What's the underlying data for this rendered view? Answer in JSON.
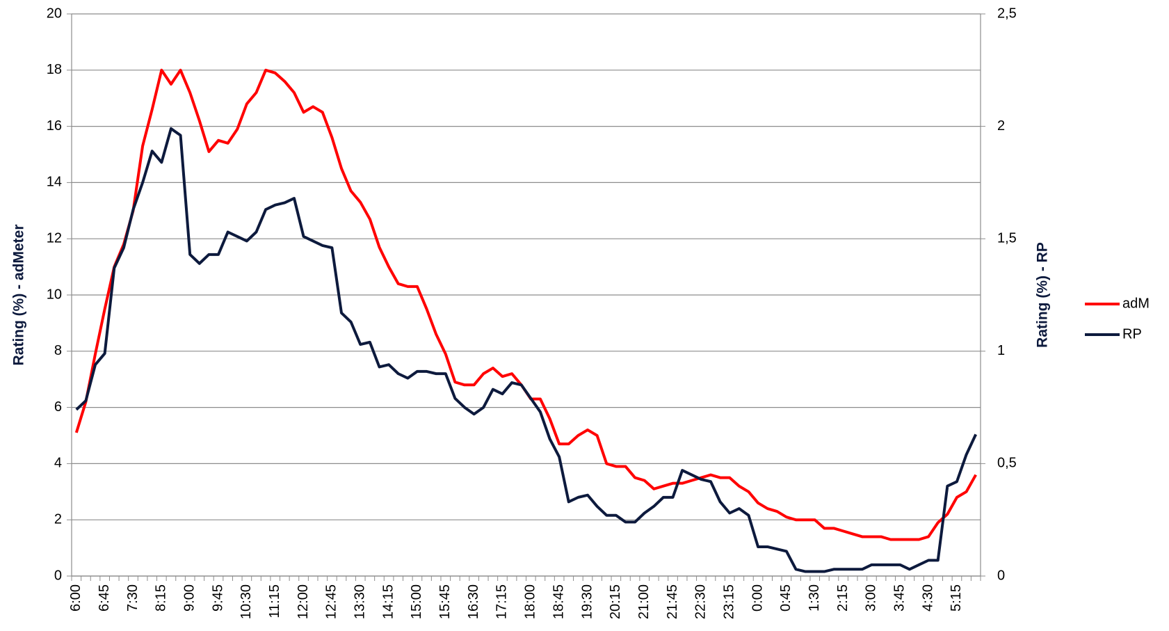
{
  "chart_data": {
    "type": "line",
    "y_label": "Rating (%) - adMeter",
    "y2_label": "Rating (%) - RP",
    "categories": [
      "6:00",
      null,
      null,
      "6:45",
      null,
      null,
      "7:30",
      null,
      null,
      "8:15",
      null,
      null,
      "9:00",
      null,
      null,
      "9:45",
      null,
      null,
      "10:30",
      null,
      null,
      "11:15",
      null,
      null,
      "12:00",
      null,
      null,
      "12:45",
      null,
      null,
      "13:30",
      null,
      null,
      "14:15",
      null,
      null,
      "15:00",
      null,
      null,
      "15:45",
      null,
      null,
      "16:30",
      null,
      null,
      "17:15",
      null,
      null,
      "18:00",
      null,
      null,
      "18:45",
      null,
      null,
      "19:30",
      null,
      null,
      "20:15",
      null,
      null,
      "21:00",
      null,
      null,
      "21:45",
      null,
      null,
      "22:30",
      null,
      null,
      "23:15",
      null,
      null,
      "0:00",
      null,
      null,
      "0:45",
      null,
      null,
      "1:30",
      null,
      null,
      "2:15",
      null,
      null,
      "3:00",
      null,
      null,
      "3:45",
      null,
      null,
      "4:30",
      null,
      null,
      "5:15",
      null,
      null
    ],
    "series": [
      {
        "name": "adM",
        "color": "#ff0000",
        "values": [
          5.1,
          6.2,
          7.9,
          9.5,
          11.0,
          11.8,
          13.0,
          15.3,
          16.6,
          18.0,
          17.5,
          18.0,
          17.2,
          16.2,
          15.1,
          15.5,
          15.4,
          15.9,
          16.8,
          17.2,
          18.0,
          17.9,
          17.6,
          17.2,
          16.5,
          16.7,
          16.5,
          15.6,
          14.5,
          13.7,
          13.3,
          12.7,
          11.7,
          11.0,
          10.4,
          10.3,
          10.3,
          9.5,
          8.6,
          7.9,
          6.9,
          6.8,
          6.8,
          7.2,
          7.4,
          7.1,
          7.2,
          6.8,
          6.3,
          6.3,
          5.6,
          4.7,
          4.7,
          5.0,
          5.2,
          5.0,
          4.0,
          3.9,
          3.9,
          3.5,
          3.4,
          3.1,
          3.2,
          3.3,
          3.3,
          3.4,
          3.5,
          3.6,
          3.5,
          3.5,
          3.2,
          3.0,
          2.6,
          2.4,
          2.3,
          2.1,
          2.0,
          2.0,
          2.0,
          1.7,
          1.7,
          1.6,
          1.5,
          1.4,
          1.4,
          1.4,
          1.3,
          1.3,
          1.3,
          1.3,
          1.4,
          1.9,
          2.2,
          2.8,
          3.0,
          3.6
        ]
      },
      {
        "name": "RP",
        "color": "#0d1a3d",
        "axis": "y2",
        "values": [
          0.74,
          0.78,
          0.94,
          0.99,
          1.37,
          1.46,
          1.63,
          1.75,
          1.89,
          1.84,
          1.99,
          1.96,
          1.43,
          1.39,
          1.43,
          1.43,
          1.53,
          1.51,
          1.49,
          1.53,
          1.63,
          1.65,
          1.66,
          1.68,
          1.51,
          1.49,
          1.47,
          1.46,
          1.17,
          1.13,
          1.03,
          1.04,
          0.93,
          0.94,
          0.9,
          0.88,
          0.91,
          0.91,
          0.9,
          0.9,
          0.79,
          0.75,
          0.72,
          0.75,
          0.83,
          0.81,
          0.86,
          0.85,
          0.79,
          0.73,
          0.61,
          0.53,
          0.33,
          0.35,
          0.36,
          0.31,
          0.27,
          0.27,
          0.24,
          0.24,
          0.28,
          0.31,
          0.35,
          0.35,
          0.47,
          0.45,
          0.43,
          0.42,
          0.33,
          0.28,
          0.3,
          0.27,
          0.13,
          0.13,
          0.12,
          0.11,
          0.03,
          0.02,
          0.02,
          0.02,
          0.03,
          0.03,
          0.03,
          0.03,
          0.05,
          0.05,
          0.05,
          0.05,
          0.03,
          0.05,
          0.07,
          0.07,
          0.4,
          0.42,
          0.54,
          0.63
        ]
      }
    ],
    "ylim": [
      0,
      20
    ],
    "yticks": [
      0,
      2,
      4,
      6,
      8,
      10,
      12,
      14,
      16,
      18,
      20
    ],
    "y2lim": [
      0,
      2.5
    ],
    "y2ticks": [
      0,
      {
        "value": 0.5,
        "label": "0,5"
      },
      1,
      {
        "value": 1.5,
        "label": "1,5"
      },
      2,
      {
        "value": 2.5,
        "label": "2,5"
      }
    ],
    "grid": true,
    "legend": "right"
  }
}
